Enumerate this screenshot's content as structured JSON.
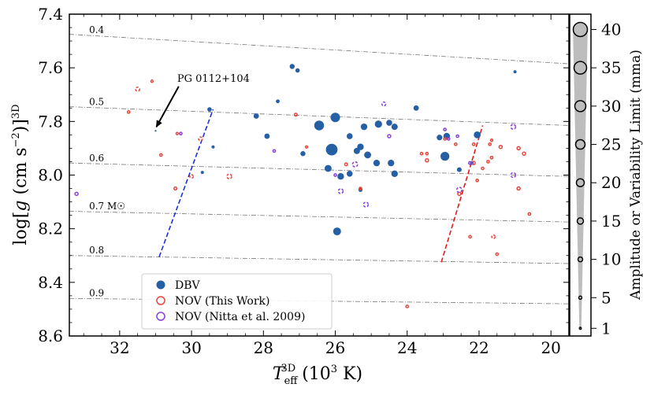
{
  "chart_data": {
    "type": "scatter",
    "xlabel": "T_eff^3D (10^3 K)",
    "ylabel": "log[g (cm s^-2)]^3D",
    "xlim": [
      33.4,
      19.5
    ],
    "ylim": [
      8.6,
      7.4
    ],
    "x_ticks": [
      32,
      30,
      28,
      26,
      24,
      22,
      20
    ],
    "y_ticks": [
      7.4,
      7.6,
      7.8,
      8.0,
      8.2,
      8.4,
      8.6
    ],
    "tick_labels": {
      "x": [
        "32",
        "30",
        "28",
        "26",
        "24",
        "22",
        "20"
      ],
      "y": [
        "7.4",
        "7.6",
        "7.8",
        "8.0",
        "8.2",
        "8.4",
        "8.6"
      ]
    },
    "mass_tracks": [
      {
        "label": "0.4",
        "x": [
          33.4,
          19.5
        ],
        "y": [
          7.475,
          7.585
        ]
      },
      {
        "label": "0.5",
        "x": [
          33.4,
          19.5
        ],
        "y": [
          7.745,
          7.815
        ]
      },
      {
        "label": "0.6",
        "x": [
          33.4,
          19.5
        ],
        "y": [
          7.955,
          8.005
        ]
      },
      {
        "label": "0.7 M☉",
        "x": [
          33.4,
          19.5
        ],
        "y": [
          8.135,
          8.175
        ]
      },
      {
        "label": "0.8",
        "x": [
          33.4,
          19.5
        ],
        "y": [
          8.3,
          8.33
        ]
      },
      {
        "label": "0.9",
        "x": [
          33.4,
          19.5
        ],
        "y": [
          8.46,
          8.48
        ]
      }
    ],
    "instability_strip": {
      "blue_edge": {
        "x": [
          30.9,
          29.4
        ],
        "y": [
          8.305,
          7.755
        ]
      },
      "red_edge": {
        "x": [
          23.05,
          21.9
        ],
        "y": [
          8.325,
          7.815
        ]
      }
    },
    "annotation": {
      "text": "PG 0112+104",
      "point": [
        31.0,
        7.835
      ],
      "text_at": [
        30.4,
        7.64
      ]
    },
    "series": [
      {
        "name": "DBV",
        "color": "#2660a4",
        "style": "filled",
        "points": [
          {
            "x": 31.0,
            "y": 7.835,
            "amp": 0.5
          },
          {
            "x": 29.5,
            "y": 7.755,
            "amp": 9
          },
          {
            "x": 29.4,
            "y": 7.895,
            "amp": 5
          },
          {
            "x": 29.7,
            "y": 7.99,
            "amp": 5
          },
          {
            "x": 28.2,
            "y": 7.78,
            "amp": 12
          },
          {
            "x": 27.6,
            "y": 7.725,
            "amp": 7
          },
          {
            "x": 27.9,
            "y": 7.855,
            "amp": 12
          },
          {
            "x": 27.2,
            "y": 7.595,
            "amp": 11
          },
          {
            "x": 27.05,
            "y": 7.61,
            "amp": 9
          },
          {
            "x": 26.9,
            "y": 7.92,
            "amp": 11
          },
          {
            "x": 26.45,
            "y": 7.815,
            "amp": 26
          },
          {
            "x": 26.0,
            "y": 7.785,
            "amp": 25
          },
          {
            "x": 26.1,
            "y": 7.905,
            "amp": 32
          },
          {
            "x": 26.2,
            "y": 7.975,
            "amp": 17
          },
          {
            "x": 25.85,
            "y": 8.005,
            "amp": 16
          },
          {
            "x": 25.6,
            "y": 7.855,
            "amp": 14
          },
          {
            "x": 25.6,
            "y": 7.995,
            "amp": 14
          },
          {
            "x": 25.4,
            "y": 7.91,
            "amp": 15
          },
          {
            "x": 25.3,
            "y": 7.895,
            "amp": 16
          },
          {
            "x": 25.2,
            "y": 7.82,
            "amp": 16
          },
          {
            "x": 25.1,
            "y": 7.925,
            "amp": 17
          },
          {
            "x": 24.8,
            "y": 7.81,
            "amp": 18
          },
          {
            "x": 24.85,
            "y": 7.955,
            "amp": 16
          },
          {
            "x": 24.5,
            "y": 7.805,
            "amp": 14
          },
          {
            "x": 24.35,
            "y": 7.82,
            "amp": 15
          },
          {
            "x": 24.45,
            "y": 7.955,
            "amp": 16
          },
          {
            "x": 24.35,
            "y": 7.995,
            "amp": 16
          },
          {
            "x": 23.75,
            "y": 7.75,
            "amp": 12
          },
          {
            "x": 23.1,
            "y": 7.86,
            "amp": 13
          },
          {
            "x": 22.9,
            "y": 7.855,
            "amp": 16
          },
          {
            "x": 22.95,
            "y": 7.93,
            "amp": 23
          },
          {
            "x": 22.55,
            "y": 7.98,
            "amp": 10
          },
          {
            "x": 22.2,
            "y": 7.955,
            "amp": 7
          },
          {
            "x": 22.05,
            "y": 7.85,
            "amp": 17
          },
          {
            "x": 25.3,
            "y": 8.055,
            "amp": 8
          },
          {
            "x": 25.95,
            "y": 8.21,
            "amp": 20
          },
          {
            "x": 21.0,
            "y": 7.615,
            "amp": 5
          }
        ]
      },
      {
        "name": "NOV (This Work)",
        "color": "#e8453c",
        "style": "open",
        "points": [
          {
            "x": 31.5,
            "y": 7.68,
            "amp": 8
          },
          {
            "x": 31.1,
            "y": 7.65,
            "amp": 2
          },
          {
            "x": 31.75,
            "y": 7.765,
            "amp": 3
          },
          {
            "x": 30.85,
            "y": 7.925,
            "amp": 3
          },
          {
            "x": 30.4,
            "y": 7.845,
            "amp": 2
          },
          {
            "x": 29.75,
            "y": 7.865,
            "amp": 7
          },
          {
            "x": 30.0,
            "y": 8.005,
            "amp": 6
          },
          {
            "x": 30.45,
            "y": 8.05,
            "amp": 4
          },
          {
            "x": 28.95,
            "y": 8.005,
            "amp": 10
          },
          {
            "x": 27.1,
            "y": 7.775,
            "amp": 4
          },
          {
            "x": 26.8,
            "y": 7.895,
            "amp": 2
          },
          {
            "x": 25.7,
            "y": 7.96,
            "amp": 4
          },
          {
            "x": 25.3,
            "y": 8.05,
            "amp": 3
          },
          {
            "x": 23.6,
            "y": 7.92,
            "amp": 3
          },
          {
            "x": 23.45,
            "y": 7.92,
            "amp": 3
          },
          {
            "x": 23.45,
            "y": 7.945,
            "amp": 5
          },
          {
            "x": 22.95,
            "y": 7.865,
            "amp": 3
          },
          {
            "x": 22.65,
            "y": 7.885,
            "amp": 3
          },
          {
            "x": 22.15,
            "y": 7.885,
            "amp": 3
          },
          {
            "x": 22.55,
            "y": 8.07,
            "amp": 5
          },
          {
            "x": 22.25,
            "y": 8.23,
            "amp": 3
          },
          {
            "x": 22.05,
            "y": 8.02,
            "amp": 3
          },
          {
            "x": 21.9,
            "y": 7.975,
            "amp": 3
          },
          {
            "x": 21.75,
            "y": 7.95,
            "amp": 3
          },
          {
            "x": 21.65,
            "y": 7.935,
            "amp": 3
          },
          {
            "x": 21.7,
            "y": 7.885,
            "amp": 3
          },
          {
            "x": 21.65,
            "y": 7.87,
            "amp": 2
          },
          {
            "x": 21.4,
            "y": 7.895,
            "amp": 5
          },
          {
            "x": 20.9,
            "y": 7.9,
            "amp": 5
          },
          {
            "x": 20.75,
            "y": 7.92,
            "amp": 5
          },
          {
            "x": 20.9,
            "y": 8.05,
            "amp": 5
          },
          {
            "x": 20.6,
            "y": 8.145,
            "amp": 3
          },
          {
            "x": 21.6,
            "y": 8.23,
            "amp": 6
          },
          {
            "x": 21.5,
            "y": 8.295,
            "amp": 3
          },
          {
            "x": 24.0,
            "y": 8.49,
            "amp": 3
          },
          {
            "x": 22.15,
            "y": 7.955,
            "amp": 5
          }
        ]
      },
      {
        "name": "NOV (Nitta et al. 2009)",
        "color": "#8a3fd8",
        "style": "open",
        "points": [
          {
            "x": 33.2,
            "y": 8.07,
            "amp": 5
          },
          {
            "x": 30.3,
            "y": 7.845,
            "amp": 3
          },
          {
            "x": 27.7,
            "y": 7.91,
            "amp": 3
          },
          {
            "x": 25.85,
            "y": 8.06,
            "amp": 10
          },
          {
            "x": 25.45,
            "y": 7.96,
            "amp": 11
          },
          {
            "x": 25.15,
            "y": 8.11,
            "amp": 10
          },
          {
            "x": 24.65,
            "y": 7.735,
            "amp": 7
          },
          {
            "x": 24.5,
            "y": 7.855,
            "amp": 5
          },
          {
            "x": 22.95,
            "y": 7.83,
            "amp": 3
          },
          {
            "x": 22.6,
            "y": 7.855,
            "amp": 3
          },
          {
            "x": 22.85,
            "y": 7.865,
            "amp": 3
          },
          {
            "x": 22.55,
            "y": 8.055,
            "amp": 11
          },
          {
            "x": 22.25,
            "y": 7.955,
            "amp": 4
          },
          {
            "x": 21.05,
            "y": 7.82,
            "amp": 10
          },
          {
            "x": 21.05,
            "y": 8.0,
            "amp": 10
          },
          {
            "x": 26.0,
            "y": 8.0,
            "amp": 3
          }
        ]
      }
    ],
    "legend": {
      "position": "lower-left",
      "entries": [
        "DBV",
        "NOV (This Work)",
        "NOV (Nitta et al. 2009)"
      ]
    },
    "colorbar": {
      "label": "Amplitude or Variability Limit (mma)",
      "ticks": [
        1,
        5,
        10,
        15,
        20,
        25,
        30,
        35,
        40
      ],
      "tick_labels": [
        "1",
        "5",
        "10",
        "15",
        "20",
        "25",
        "30",
        "35",
        "40"
      ],
      "range": [
        0,
        42
      ]
    }
  }
}
